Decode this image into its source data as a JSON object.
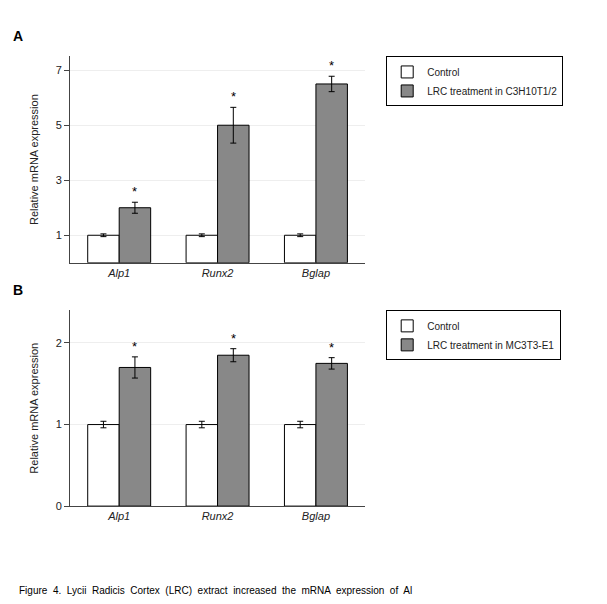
{
  "chart_data": [
    {
      "type": "bar",
      "title": "A",
      "categories": [
        "Alp1",
        "Runx2",
        "Bglap"
      ],
      "series": [
        {
          "name": "Control",
          "color": "#ffffff",
          "values": [
            1.0,
            1.0,
            1.0
          ],
          "errors": [
            0.05,
            0.05,
            0.05
          ]
        },
        {
          "name": "LRC treatment in C3H10T1/2",
          "color": "#888888",
          "values": [
            2.0,
            5.0,
            6.5
          ],
          "errors": [
            0.2,
            0.65,
            0.28
          ]
        }
      ],
      "ylabel": "Relative mRNA expression",
      "ylim": [
        0,
        7.5
      ],
      "yticks": [
        1,
        3,
        5,
        7
      ],
      "grid": true,
      "legend": "right",
      "annotations": [
        {
          "text": "*",
          "category": "Alp1",
          "series": "LRC treatment in C3H10T1/2"
        },
        {
          "text": "*",
          "category": "Runx2",
          "series": "LRC treatment in C3H10T1/2"
        },
        {
          "text": "*",
          "category": "Bglap",
          "series": "LRC treatment in C3H10T1/2"
        }
      ]
    },
    {
      "type": "bar",
      "title": "B",
      "categories": [
        "Alp1",
        "Runx2",
        "Bglap"
      ],
      "series": [
        {
          "name": "Control",
          "color": "#ffffff",
          "values": [
            1.0,
            1.0,
            1.0
          ],
          "errors": [
            0.04,
            0.04,
            0.04
          ]
        },
        {
          "name": "LRC treatment in MC3T3-E1",
          "color": "#888888",
          "values": [
            1.7,
            1.85,
            1.75
          ],
          "errors": [
            0.13,
            0.08,
            0.07
          ]
        }
      ],
      "ylabel": "Relative mRNA expression",
      "ylim": [
        0,
        2.4
      ],
      "yticks": [
        0,
        1,
        2
      ],
      "grid": true,
      "legend": "right",
      "annotations": [
        {
          "text": "*",
          "category": "Alp1",
          "series": "LRC treatment in MC3T3-E1"
        },
        {
          "text": "*",
          "category": "Runx2",
          "series": "LRC treatment in MC3T3-E1"
        },
        {
          "text": "*",
          "category": "Bglap",
          "series": "LRC treatment in MC3T3-E1"
        },
        {
          "text": "Figure  4.  Lycii  Radicis  Cortex  (LRC)  extract  increased  the  mRNA  expression  of  Al"
        }
      ]
    }
  ]
}
